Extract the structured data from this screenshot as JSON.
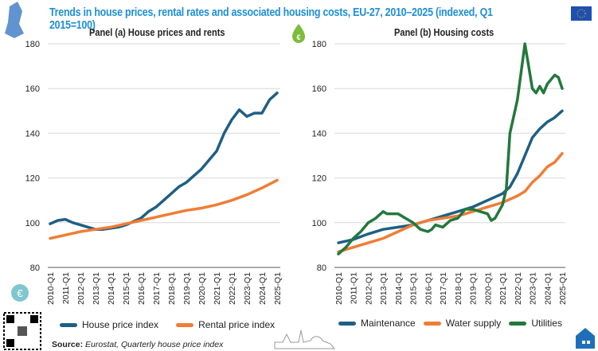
{
  "title": "Trends in house prices, rental rates and associated housing costs, EU-27, 2010–2025  (indexed, Q1 2015=100)",
  "source_label": "Source:",
  "source_text": "Eurostat, Quarterly house price index",
  "chart_data": [
    {
      "type": "line",
      "title": "Panel (a) House prices and rents",
      "ylim": [
        80,
        180
      ],
      "yticks": [
        80,
        100,
        120,
        140,
        160,
        180
      ],
      "xticks": [
        "2010-Q1",
        "2011-Q1",
        "2012-Q1",
        "2013-Q1",
        "2014-Q1",
        "2015-Q1",
        "2016-Q1",
        "2017-Q1",
        "2018-Q1",
        "2019-Q1",
        "2020-Q1",
        "2021-Q1",
        "2022-Q1",
        "2023-Q1",
        "2024-Q1",
        "2025-Q1"
      ],
      "series": [
        {
          "name": "House price index",
          "color": "#1f5f84",
          "x": [
            2010,
            2010.5,
            2011,
            2011.5,
            2012,
            2012.5,
            2013,
            2013.5,
            2014,
            2014.5,
            2015,
            2015.5,
            2016,
            2016.5,
            2017,
            2017.5,
            2018,
            2018.5,
            2019,
            2019.5,
            2020,
            2020.5,
            2021,
            2021.5,
            2022,
            2022.5,
            2023,
            2023.5,
            2024,
            2024.5,
            2025
          ],
          "values": [
            99.5,
            101,
            101.5,
            100,
            99,
            98,
            97,
            97,
            97.5,
            98,
            99,
            100.5,
            102,
            105,
            107,
            110,
            113,
            116,
            118,
            121,
            124,
            128,
            132,
            140,
            146,
            150.5,
            147.5,
            149,
            149,
            155,
            158
          ]
        },
        {
          "name": "Rental price index",
          "color": "#ef7d35",
          "x": [
            2010,
            2011,
            2012,
            2013,
            2014,
            2015,
            2016,
            2017,
            2018,
            2019,
            2020,
            2021,
            2022,
            2023,
            2024,
            2025
          ],
          "values": [
            93,
            94.5,
            96,
            97,
            98,
            99.5,
            101,
            102.5,
            104,
            105.5,
            106.5,
            108,
            110,
            112.5,
            115.5,
            119
          ]
        }
      ]
    },
    {
      "type": "line",
      "title": "Panel (b) Housing costs",
      "ylim": [
        80,
        180
      ],
      "yticks": [
        80,
        100,
        120,
        140,
        160,
        180
      ],
      "xticks": [
        "2010-Q1",
        "2011-Q1",
        "2012-Q1",
        "2013-Q1",
        "2014-Q1",
        "2015-Q1",
        "2016-Q1",
        "2017-Q1",
        "2018-Q1",
        "2019-Q1",
        "2020-Q1",
        "2021-Q1",
        "2022-Q1",
        "2023-Q1",
        "2024-Q1",
        "2025-Q1"
      ],
      "series": [
        {
          "name": "Maintenance",
          "color": "#1f5f84",
          "x": [
            2010,
            2011,
            2012,
            2013,
            2014,
            2015,
            2016,
            2017,
            2018,
            2019,
            2020,
            2021,
            2021.5,
            2022,
            2022.5,
            2023,
            2023.5,
            2024,
            2024.5,
            2025
          ],
          "values": [
            91,
            92.5,
            95,
            97,
            98,
            99,
            101,
            103,
            105,
            107,
            110,
            113,
            116,
            122,
            130,
            138,
            142,
            145,
            147,
            150
          ]
        },
        {
          "name": "Water supply",
          "color": "#ef7d35",
          "x": [
            2010,
            2011,
            2012,
            2013,
            2014,
            2015,
            2016,
            2017,
            2018,
            2019,
            2020,
            2021,
            2022,
            2022.5,
            2023,
            2023.5,
            2024,
            2024.5,
            2025
          ],
          "values": [
            87,
            89,
            91,
            93,
            96,
            99,
            101,
            102,
            103,
            105,
            107,
            109,
            112,
            114,
            118,
            121,
            125,
            127,
            131
          ]
        },
        {
          "name": "Utilities",
          "color": "#23783d",
          "x": [
            2010,
            2010.5,
            2011,
            2011.5,
            2012,
            2012.5,
            2013,
            2013.25,
            2013.5,
            2014,
            2014.5,
            2015,
            2015.5,
            2016,
            2016.25,
            2016.5,
            2017,
            2017.5,
            2018,
            2018.5,
            2019,
            2019.5,
            2020,
            2020.25,
            2020.5,
            2021,
            2021.25,
            2021.5,
            2022,
            2022.5,
            2022.75,
            2023,
            2023.25,
            2023.5,
            2023.75,
            2024,
            2024.5,
            2024.75,
            2025
          ],
          "values": [
            86,
            89,
            93,
            96,
            100,
            102,
            105,
            104,
            104,
            104,
            102,
            100,
            97,
            96,
            97,
            99,
            98,
            101,
            102,
            106,
            106,
            105,
            104,
            101,
            102,
            108,
            115,
            140,
            155,
            180,
            170,
            160,
            158,
            161,
            158,
            162,
            166,
            165,
            160
          ]
        }
      ]
    }
  ]
}
